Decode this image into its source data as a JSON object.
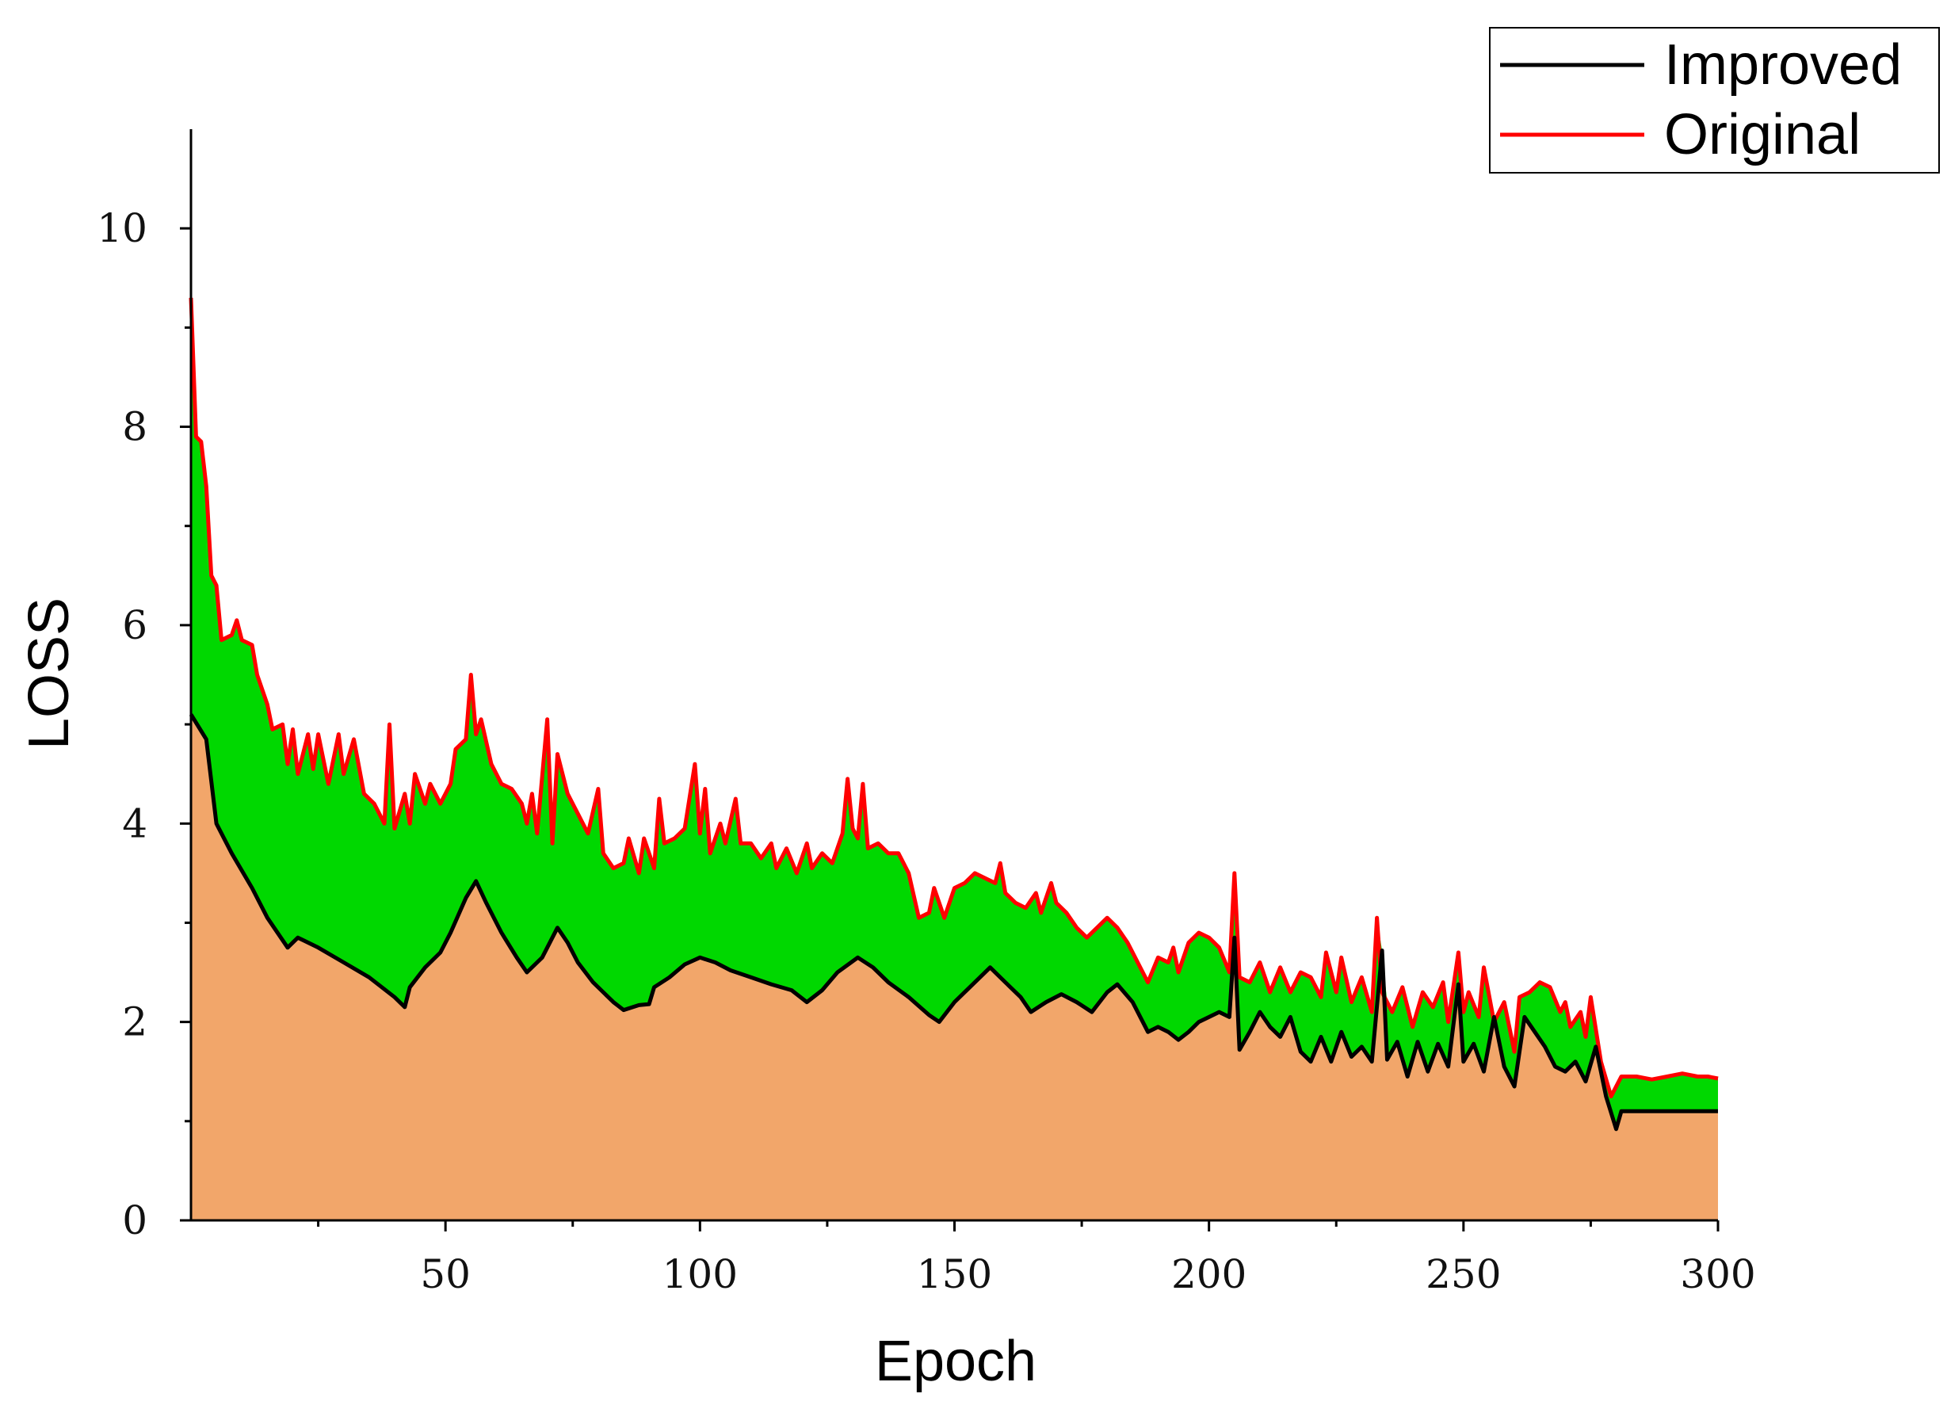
{
  "chart_data": {
    "type": "area",
    "xlabel": "Epoch",
    "ylabel": "LOSS",
    "xlim": [
      0,
      300
    ],
    "ylim": [
      0,
      11
    ],
    "x_ticks": [
      50,
      100,
      150,
      200,
      250,
      300
    ],
    "y_ticks": [
      0,
      2,
      4,
      6,
      8,
      10
    ],
    "grid": false,
    "legend_position": "top-right",
    "fill_colors": {
      "between": "#00d800",
      "below": "#f2a66a"
    },
    "series": [
      {
        "name": "Improved",
        "color": "#000000",
        "points": [
          [
            0,
            5.1
          ],
          [
            3,
            4.85
          ],
          [
            5,
            4.0
          ],
          [
            8,
            3.7
          ],
          [
            12,
            3.35
          ],
          [
            15,
            3.05
          ],
          [
            19,
            2.75
          ],
          [
            21,
            2.85
          ],
          [
            25,
            2.75
          ],
          [
            30,
            2.6
          ],
          [
            35,
            2.45
          ],
          [
            40,
            2.25
          ],
          [
            42,
            2.15
          ],
          [
            43,
            2.35
          ],
          [
            46,
            2.55
          ],
          [
            49,
            2.7
          ],
          [
            51,
            2.9
          ],
          [
            54,
            3.25
          ],
          [
            56,
            3.42
          ],
          [
            58,
            3.2
          ],
          [
            61,
            2.9
          ],
          [
            64,
            2.65
          ],
          [
            66,
            2.5
          ],
          [
            69,
            2.65
          ],
          [
            72,
            2.95
          ],
          [
            74,
            2.8
          ],
          [
            76,
            2.6
          ],
          [
            79,
            2.4
          ],
          [
            83,
            2.2
          ],
          [
            85,
            2.12
          ],
          [
            88,
            2.17
          ],
          [
            90,
            2.18
          ],
          [
            91,
            2.35
          ],
          [
            94,
            2.45
          ],
          [
            97,
            2.58
          ],
          [
            100,
            2.65
          ],
          [
            103,
            2.6
          ],
          [
            106,
            2.52
          ],
          [
            110,
            2.45
          ],
          [
            114,
            2.38
          ],
          [
            118,
            2.32
          ],
          [
            121,
            2.2
          ],
          [
            124,
            2.32
          ],
          [
            127,
            2.5
          ],
          [
            131,
            2.65
          ],
          [
            134,
            2.55
          ],
          [
            137,
            2.4
          ],
          [
            141,
            2.25
          ],
          [
            145,
            2.07
          ],
          [
            147,
            2.0
          ],
          [
            150,
            2.2
          ],
          [
            153,
            2.35
          ],
          [
            157,
            2.55
          ],
          [
            160,
            2.4
          ],
          [
            163,
            2.25
          ],
          [
            165,
            2.1
          ],
          [
            168,
            2.2
          ],
          [
            171,
            2.28
          ],
          [
            174,
            2.2
          ],
          [
            177,
            2.1
          ],
          [
            180,
            2.3
          ],
          [
            182,
            2.38
          ],
          [
            185,
            2.2
          ],
          [
            188,
            1.9
          ],
          [
            190,
            1.95
          ],
          [
            192,
            1.9
          ],
          [
            194,
            1.82
          ],
          [
            196,
            1.9
          ],
          [
            198,
            2.0
          ],
          [
            200,
            2.05
          ],
          [
            202,
            2.1
          ],
          [
            204,
            2.05
          ],
          [
            205,
            2.85
          ],
          [
            206,
            1.72
          ],
          [
            208,
            1.9
          ],
          [
            210,
            2.1
          ],
          [
            212,
            1.95
          ],
          [
            214,
            1.85
          ],
          [
            216,
            2.05
          ],
          [
            218,
            1.7
          ],
          [
            220,
            1.6
          ],
          [
            222,
            1.85
          ],
          [
            224,
            1.6
          ],
          [
            226,
            1.9
          ],
          [
            228,
            1.65
          ],
          [
            230,
            1.75
          ],
          [
            232,
            1.6
          ],
          [
            234,
            2.72
          ],
          [
            235,
            1.62
          ],
          [
            237,
            1.8
          ],
          [
            239,
            1.45
          ],
          [
            241,
            1.8
          ],
          [
            243,
            1.5
          ],
          [
            245,
            1.78
          ],
          [
            247,
            1.55
          ],
          [
            249,
            2.38
          ],
          [
            250,
            1.6
          ],
          [
            252,
            1.78
          ],
          [
            254,
            1.5
          ],
          [
            256,
            2.05
          ],
          [
            258,
            1.55
          ],
          [
            260,
            1.35
          ],
          [
            262,
            2.05
          ],
          [
            264,
            1.9
          ],
          [
            266,
            1.75
          ],
          [
            268,
            1.55
          ],
          [
            270,
            1.5
          ],
          [
            272,
            1.6
          ],
          [
            274,
            1.4
          ],
          [
            276,
            1.75
          ],
          [
            278,
            1.25
          ],
          [
            280,
            0.92
          ],
          [
            281,
            1.1
          ],
          [
            286,
            1.1
          ],
          [
            295,
            1.1
          ],
          [
            300,
            1.1
          ]
        ]
      },
      {
        "name": "Original",
        "color": "#ff0000",
        "points": [
          [
            0,
            9.3
          ],
          [
            1,
            7.9
          ],
          [
            2,
            7.85
          ],
          [
            3,
            7.4
          ],
          [
            4,
            6.5
          ],
          [
            5,
            6.4
          ],
          [
            6,
            5.85
          ],
          [
            8,
            5.9
          ],
          [
            9,
            6.05
          ],
          [
            10,
            5.85
          ],
          [
            12,
            5.8
          ],
          [
            13,
            5.5
          ],
          [
            15,
            5.2
          ],
          [
            16,
            4.95
          ],
          [
            18,
            5.0
          ],
          [
            19,
            4.6
          ],
          [
            20,
            4.95
          ],
          [
            21,
            4.5
          ],
          [
            23,
            4.9
          ],
          [
            24,
            4.55
          ],
          [
            25,
            4.9
          ],
          [
            27,
            4.4
          ],
          [
            29,
            4.9
          ],
          [
            30,
            4.5
          ],
          [
            32,
            4.85
          ],
          [
            34,
            4.3
          ],
          [
            36,
            4.2
          ],
          [
            38,
            4.0
          ],
          [
            39,
            5.0
          ],
          [
            40,
            3.95
          ],
          [
            42,
            4.3
          ],
          [
            43,
            4.0
          ],
          [
            44,
            4.5
          ],
          [
            46,
            4.2
          ],
          [
            47,
            4.4
          ],
          [
            49,
            4.2
          ],
          [
            51,
            4.4
          ],
          [
            52,
            4.75
          ],
          [
            54,
            4.85
          ],
          [
            55,
            5.5
          ],
          [
            56,
            4.9
          ],
          [
            57,
            5.05
          ],
          [
            59,
            4.6
          ],
          [
            61,
            4.4
          ],
          [
            63,
            4.35
          ],
          [
            65,
            4.2
          ],
          [
            66,
            4.0
          ],
          [
            67,
            4.3
          ],
          [
            68,
            3.9
          ],
          [
            70,
            5.05
          ],
          [
            71,
            3.8
          ],
          [
            72,
            4.7
          ],
          [
            74,
            4.3
          ],
          [
            76,
            4.1
          ],
          [
            78,
            3.9
          ],
          [
            80,
            4.35
          ],
          [
            81,
            3.7
          ],
          [
            83,
            3.55
          ],
          [
            85,
            3.6
          ],
          [
            86,
            3.85
          ],
          [
            88,
            3.5
          ],
          [
            89,
            3.85
          ],
          [
            91,
            3.55
          ],
          [
            92,
            4.25
          ],
          [
            93,
            3.8
          ],
          [
            95,
            3.85
          ],
          [
            97,
            3.95
          ],
          [
            99,
            4.6
          ],
          [
            100,
            3.9
          ],
          [
            101,
            4.35
          ],
          [
            102,
            3.7
          ],
          [
            104,
            4.0
          ],
          [
            105,
            3.8
          ],
          [
            107,
            4.25
          ],
          [
            108,
            3.8
          ],
          [
            110,
            3.8
          ],
          [
            112,
            3.65
          ],
          [
            114,
            3.8
          ],
          [
            115,
            3.55
          ],
          [
            117,
            3.75
          ],
          [
            119,
            3.5
          ],
          [
            121,
            3.8
          ],
          [
            122,
            3.55
          ],
          [
            124,
            3.7
          ],
          [
            126,
            3.6
          ],
          [
            128,
            3.9
          ],
          [
            129,
            4.45
          ],
          [
            130,
            3.95
          ],
          [
            131,
            3.85
          ],
          [
            132,
            4.4
          ],
          [
            133,
            3.75
          ],
          [
            135,
            3.8
          ],
          [
            137,
            3.7
          ],
          [
            139,
            3.7
          ],
          [
            141,
            3.5
          ],
          [
            143,
            3.05
          ],
          [
            145,
            3.1
          ],
          [
            146,
            3.35
          ],
          [
            148,
            3.05
          ],
          [
            150,
            3.35
          ],
          [
            152,
            3.4
          ],
          [
            154,
            3.5
          ],
          [
            156,
            3.45
          ],
          [
            158,
            3.4
          ],
          [
            159,
            3.6
          ],
          [
            160,
            3.3
          ],
          [
            162,
            3.2
          ],
          [
            164,
            3.15
          ],
          [
            166,
            3.3
          ],
          [
            167,
            3.1
          ],
          [
            169,
            3.4
          ],
          [
            170,
            3.2
          ],
          [
            172,
            3.1
          ],
          [
            174,
            2.95
          ],
          [
            176,
            2.85
          ],
          [
            178,
            2.95
          ],
          [
            180,
            3.05
          ],
          [
            182,
            2.95
          ],
          [
            184,
            2.8
          ],
          [
            186,
            2.6
          ],
          [
            188,
            2.4
          ],
          [
            190,
            2.65
          ],
          [
            192,
            2.6
          ],
          [
            193,
            2.75
          ],
          [
            194,
            2.5
          ],
          [
            196,
            2.8
          ],
          [
            198,
            2.9
          ],
          [
            200,
            2.85
          ],
          [
            202,
            2.75
          ],
          [
            204,
            2.5
          ],
          [
            205,
            3.5
          ],
          [
            206,
            2.45
          ],
          [
            208,
            2.4
          ],
          [
            210,
            2.6
          ],
          [
            212,
            2.3
          ],
          [
            214,
            2.55
          ],
          [
            216,
            2.3
          ],
          [
            218,
            2.5
          ],
          [
            220,
            2.45
          ],
          [
            222,
            2.25
          ],
          [
            223,
            2.7
          ],
          [
            225,
            2.3
          ],
          [
            226,
            2.65
          ],
          [
            228,
            2.2
          ],
          [
            230,
            2.45
          ],
          [
            232,
            2.1
          ],
          [
            233,
            3.05
          ],
          [
            234,
            2.3
          ],
          [
            236,
            2.1
          ],
          [
            238,
            2.35
          ],
          [
            240,
            1.95
          ],
          [
            242,
            2.3
          ],
          [
            244,
            2.15
          ],
          [
            246,
            2.4
          ],
          [
            247,
            2.0
          ],
          [
            249,
            2.7
          ],
          [
            250,
            2.1
          ],
          [
            251,
            2.3
          ],
          [
            253,
            2.05
          ],
          [
            254,
            2.55
          ],
          [
            256,
            2.0
          ],
          [
            258,
            2.2
          ],
          [
            260,
            1.7
          ],
          [
            261,
            2.25
          ],
          [
            263,
            2.3
          ],
          [
            265,
            2.4
          ],
          [
            267,
            2.35
          ],
          [
            269,
            2.1
          ],
          [
            270,
            2.2
          ],
          [
            271,
            1.95
          ],
          [
            273,
            2.1
          ],
          [
            274,
            1.85
          ],
          [
            275,
            2.25
          ],
          [
            277,
            1.6
          ],
          [
            279,
            1.25
          ],
          [
            281,
            1.45
          ],
          [
            284,
            1.45
          ],
          [
            287,
            1.42
          ],
          [
            290,
            1.45
          ],
          [
            293,
            1.48
          ],
          [
            296,
            1.45
          ],
          [
            298,
            1.45
          ],
          [
            300,
            1.43
          ]
        ]
      }
    ]
  }
}
